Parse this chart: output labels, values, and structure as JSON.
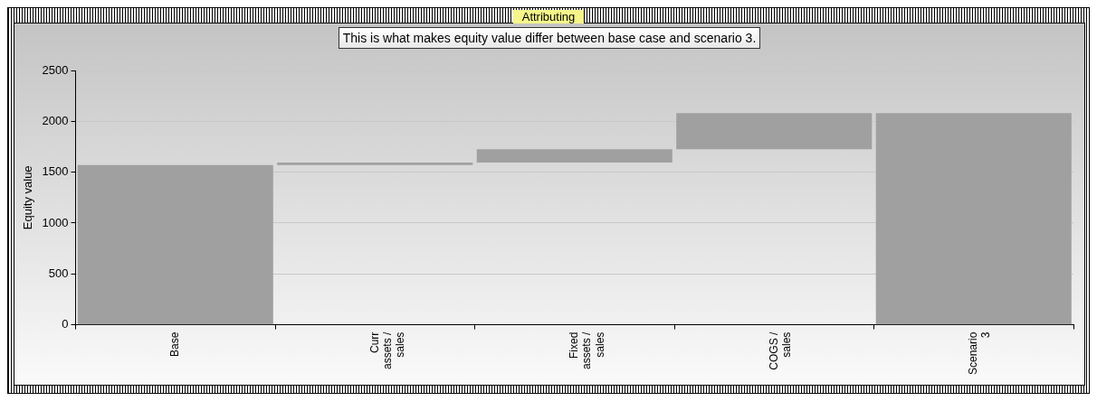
{
  "chart_data": {
    "type": "bar",
    "title": "Attributing",
    "subtitle": "This is what makes equity value differ between base case and scenario 3.",
    "ylabel": "Equity value",
    "categories": [
      "Base",
      "Curr assets / sales",
      "Fixed assets / sales",
      "COGS / sales",
      "Scenario 3"
    ],
    "values": [
      1570,
      25,
      130,
      355,
      2080
    ],
    "base": [
      0,
      1570,
      1595,
      1725,
      0
    ],
    "color": "#a0a0a0",
    "ylim": [
      0,
      2500
    ],
    "yticks": [
      0,
      500,
      1000,
      1500,
      2000,
      2500
    ],
    "grid": "y",
    "legend": false
  }
}
